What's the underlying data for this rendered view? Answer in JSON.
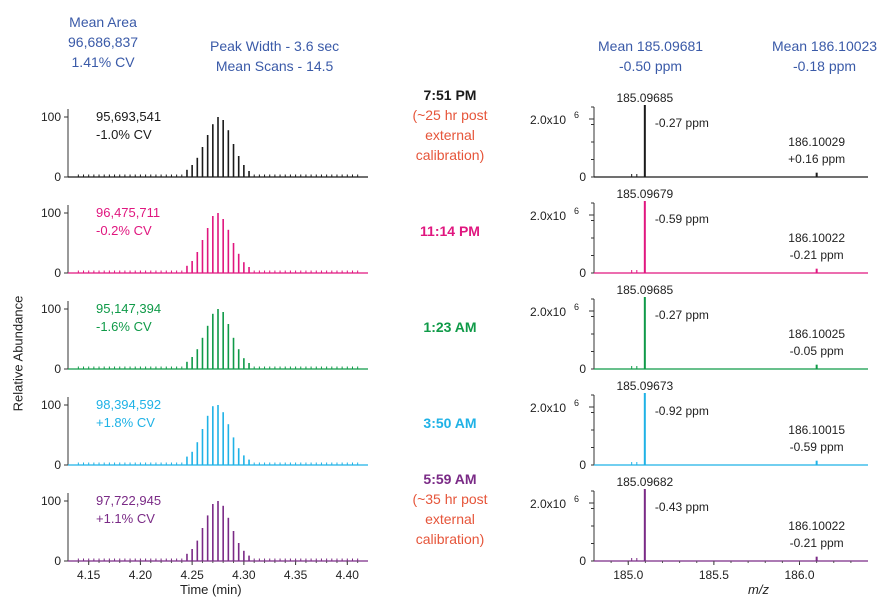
{
  "header": {
    "area_title": "Mean Area",
    "area_value": "96,686,837",
    "area_cv": "1.41% CV",
    "peak_width": "Peak Width - 3.6 sec",
    "mean_scans": "Mean Scans - 14.5",
    "mean1_title": "Mean 185.09681",
    "mean1_ppm": "-0.50 ppm",
    "mean2_title": "Mean 186.10023",
    "mean2_ppm": "-0.18 ppm"
  },
  "axis_labels": {
    "y_left": "Relative Abundance",
    "x_left": "Time (min)",
    "x_right": "m/z"
  },
  "colors": [
    "#1a1a1a",
    "#e0167f",
    "#0f9a48",
    "#1fb2e6",
    "#7a2a86"
  ],
  "time_labels": [
    {
      "lines": [
        "7:51 PM",
        "(~25 hr post",
        "external",
        "calibration)"
      ],
      "color": "#1a1a1a",
      "sub_color": "#e6553a"
    },
    {
      "lines": [
        "11:14 PM"
      ],
      "color": "#e0167f"
    },
    {
      "lines": [
        "1:23 AM"
      ],
      "color": "#0f9a48"
    },
    {
      "lines": [
        "3:50 AM"
      ],
      "color": "#1fb2e6"
    },
    {
      "lines": [
        "5:59 AM",
        "(~35 hr post",
        "external",
        "calibration)"
      ],
      "color": "#7a2a86",
      "sub_color": "#e6553a"
    }
  ],
  "chart_data": [
    {
      "type": "bar",
      "description": "Chromatographic peaks (5 stacked panels)",
      "xlabel": "Time (min)",
      "ylabel": "Relative Abundance",
      "xlim": [
        4.13,
        4.42
      ],
      "ylim": [
        0,
        100
      ],
      "xticks": [
        "4.15",
        "4.20",
        "4.25",
        "4.30",
        "4.35",
        "4.40"
      ],
      "yticks": [
        "0",
        "100"
      ],
      "peak_center": 4.275,
      "series": [
        {
          "area": "95,693,541",
          "cv": "-1.0% CV",
          "color": "#1a1a1a",
          "x": [
            4.245,
            4.25,
            4.255,
            4.26,
            4.265,
            4.27,
            4.275,
            4.28,
            4.285,
            4.29,
            4.295,
            4.3,
            4.305
          ],
          "values": [
            12,
            20,
            32,
            50,
            70,
            88,
            100,
            95,
            78,
            55,
            35,
            20,
            10
          ]
        },
        {
          "area": "96,475,711",
          "cv": "-0.2% CV",
          "color": "#e0167f",
          "x": [
            4.245,
            4.25,
            4.255,
            4.26,
            4.265,
            4.27,
            4.275,
            4.28,
            4.285,
            4.29,
            4.295,
            4.3,
            4.305
          ],
          "values": [
            12,
            20,
            35,
            55,
            75,
            95,
            100,
            90,
            72,
            50,
            32,
            18,
            10
          ]
        },
        {
          "area": "95,147,394",
          "cv": "-1.6% CV",
          "color": "#0f9a48",
          "x": [
            4.245,
            4.25,
            4.255,
            4.26,
            4.265,
            4.27,
            4.275,
            4.28,
            4.285,
            4.29,
            4.295,
            4.3,
            4.305
          ],
          "values": [
            12,
            20,
            33,
            52,
            72,
            92,
            100,
            95,
            75,
            52,
            33,
            18,
            10
          ]
        },
        {
          "area": "98,394,592",
          "cv": "+1.8% CV",
          "color": "#1fb2e6",
          "x": [
            4.245,
            4.25,
            4.255,
            4.26,
            4.265,
            4.27,
            4.275,
            4.28,
            4.285,
            4.29,
            4.295,
            4.3,
            4.305
          ],
          "values": [
            14,
            22,
            38,
            60,
            82,
            98,
            100,
            88,
            68,
            46,
            28,
            16,
            9
          ]
        },
        {
          "area": "97,722,945",
          "cv": "+1.1% CV",
          "color": "#7a2a86",
          "x": [
            4.245,
            4.25,
            4.255,
            4.26,
            4.265,
            4.27,
            4.275,
            4.28,
            4.285,
            4.29,
            4.295,
            4.3,
            4.305
          ],
          "values": [
            12,
            20,
            34,
            55,
            76,
            95,
            100,
            92,
            72,
            50,
            30,
            17,
            9
          ]
        }
      ]
    },
    {
      "type": "bar",
      "description": "Mass spectra (5 stacked panels)",
      "xlabel": "m/z",
      "xlim": [
        184.8,
        186.4
      ],
      "xticks": [
        "185.0",
        "185.5",
        "186.0"
      ],
      "ytick_label": "2.0x10",
      "ytick_exp": "6",
      "series": [
        {
          "color": "#1a1a1a",
          "peak1_mz": "185.09685",
          "peak1_ppm": "-0.27 ppm",
          "peak2_mz": "186.10029",
          "peak2_ppm": "+0.16 ppm",
          "x": [
            185.09685,
            186.10029
          ],
          "values": [
            100,
            6
          ]
        },
        {
          "color": "#e0167f",
          "peak1_mz": "185.09679",
          "peak1_ppm": "-0.59 ppm",
          "peak2_mz": "186.10022",
          "peak2_ppm": "-0.21 ppm",
          "x": [
            185.09679,
            186.10022
          ],
          "values": [
            100,
            6
          ]
        },
        {
          "color": "#0f9a48",
          "peak1_mz": "185.09685",
          "peak1_ppm": "-0.27 ppm",
          "peak2_mz": "186.10025",
          "peak2_ppm": "-0.05 ppm",
          "x": [
            185.09685,
            186.10025
          ],
          "values": [
            100,
            6
          ]
        },
        {
          "color": "#1fb2e6",
          "peak1_mz": "185.09673",
          "peak1_ppm": "-0.92 ppm",
          "peak2_mz": "186.10015",
          "peak2_ppm": "-0.59 ppm",
          "x": [
            185.09673,
            186.10015
          ],
          "values": [
            100,
            6
          ]
        },
        {
          "color": "#7a2a86",
          "peak1_mz": "185.09682",
          "peak1_ppm": "-0.43 ppm",
          "peak2_mz": "186.10022",
          "peak2_ppm": "-0.21 ppm",
          "x": [
            185.09682,
            186.10022
          ],
          "values": [
            100,
            6
          ]
        }
      ]
    }
  ]
}
